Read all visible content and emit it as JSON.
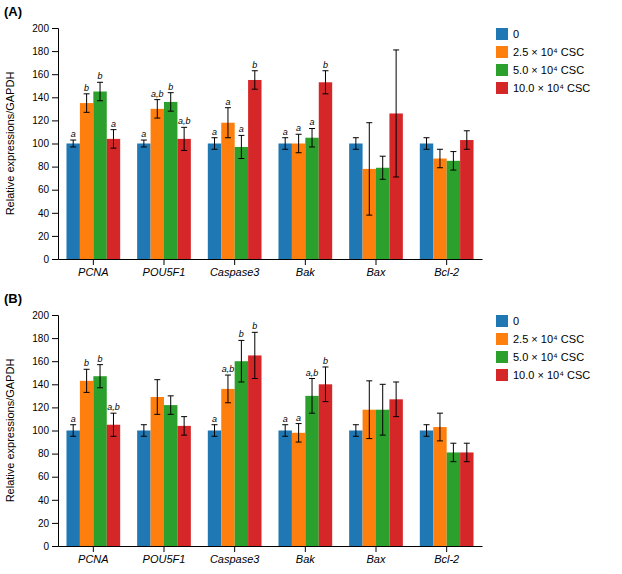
{
  "chart_data": [
    {
      "type": "bar",
      "title": "(A)",
      "categories": [
        "PCNA",
        "POU5F1",
        "Caspase3",
        "Bak",
        "Bax",
        "Bcl-2"
      ],
      "ylabel": "Relative expressions/GAPDH",
      "ylim": [
        0,
        200
      ],
      "yticks": [
        0,
        20,
        40,
        60,
        80,
        100,
        120,
        140,
        160,
        180,
        200
      ],
      "grid": false,
      "legend": "right",
      "series": [
        {
          "name": "0",
          "values": [
            100,
            100,
            100,
            100,
            100,
            100
          ],
          "errors": [
            3,
            3,
            5,
            5,
            5,
            5
          ],
          "annotations": [
            "a",
            "a",
            "a",
            "a",
            null,
            null
          ]
        },
        {
          "name": "2.5 × 10⁴ CSC",
          "values": [
            135,
            130,
            118,
            100,
            78,
            87
          ],
          "errors": [
            8,
            8,
            13,
            8,
            40,
            8
          ],
          "annotations": [
            "b",
            "a,b",
            "a",
            "a",
            null,
            null
          ]
        },
        {
          "name": "5.0 × 10⁴ CSC",
          "values": [
            145,
            136,
            97,
            105,
            79,
            85
          ],
          "errors": [
            8,
            8,
            10,
            8,
            10,
            8
          ],
          "annotations": [
            "b",
            "b",
            "a",
            "a",
            null,
            null
          ]
        },
        {
          "name": "10.0 × 10⁴ CSC",
          "values": [
            104,
            104,
            155,
            153,
            126,
            103
          ],
          "errors": [
            8,
            10,
            8,
            10,
            55,
            8
          ],
          "annotations": [
            "a",
            "a,b",
            "b",
            "b",
            null,
            null
          ]
        }
      ]
    },
    {
      "type": "bar",
      "title": "(B)",
      "categories": [
        "PCNA",
        "POU5F1",
        "Caspase3",
        "Bak",
        "Bax",
        "Bcl-2"
      ],
      "ylabel": "Relative expressions/GAPDH",
      "ylim": [
        0,
        200
      ],
      "yticks": [
        0,
        20,
        40,
        60,
        80,
        100,
        120,
        140,
        160,
        180,
        200
      ],
      "grid": false,
      "legend": "right",
      "series": [
        {
          "name": "0",
          "values": [
            100,
            100,
            100,
            100,
            100,
            100
          ],
          "errors": [
            5,
            5,
            5,
            5,
            5,
            5
          ],
          "annotations": [
            "a",
            null,
            "a",
            "a",
            null,
            null
          ]
        },
        {
          "name": "2.5 × 10⁴ CSC",
          "values": [
            143,
            129,
            136,
            98,
            118,
            103
          ],
          "errors": [
            10,
            15,
            12,
            8,
            25,
            12
          ],
          "annotations": [
            "b",
            null,
            "a,b",
            "a",
            null,
            null
          ]
        },
        {
          "name": "5.0 × 10⁴ CSC",
          "values": [
            147,
            122,
            160,
            130,
            118,
            81
          ],
          "errors": [
            10,
            8,
            18,
            15,
            22,
            8
          ],
          "annotations": [
            "b",
            null,
            "b",
            "a,b",
            null,
            null
          ]
        },
        {
          "name": "10.0 × 10⁴ CSC",
          "values": [
            105,
            104,
            165,
            140,
            127,
            81
          ],
          "errors": [
            10,
            8,
            20,
            15,
            15,
            8
          ],
          "annotations": [
            "a,b",
            null,
            "b",
            "b",
            null,
            null
          ]
        }
      ]
    }
  ]
}
